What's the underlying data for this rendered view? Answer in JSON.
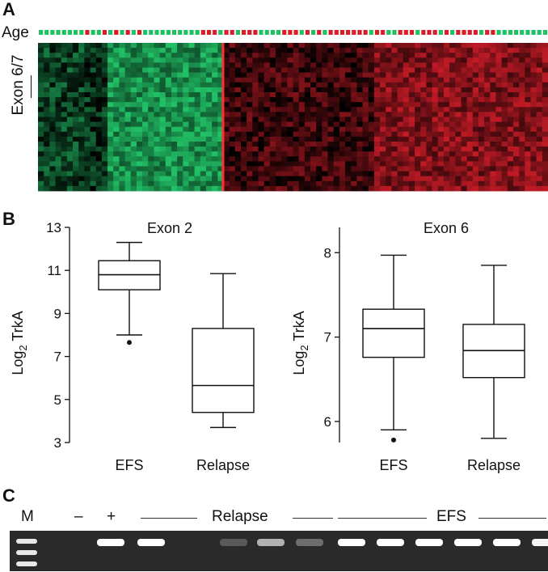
{
  "panels": {
    "a": "A",
    "b": "B",
    "c": "C"
  },
  "heatmap": {
    "age_label": "Age",
    "exon_label": "Exon 6/7",
    "colors": {
      "low": "#22c066",
      "high": "#d81e2a",
      "mid": "#000000",
      "border_line": "#ff3030"
    },
    "age_bar": {
      "n_samples": 88,
      "red_samples": [
        16,
        17,
        23,
        27,
        31,
        35,
        56,
        57,
        58,
        59,
        61,
        64,
        67,
        70,
        72,
        74,
        84,
        86,
        89,
        93,
        96,
        101,
        102,
        103,
        105,
        106,
        109,
        111,
        113,
        116,
        119,
        124,
        127,
        129,
        132,
        135,
        137,
        140,
        144,
        147,
        149,
        151,
        154,
        155,
        156
      ]
    }
  },
  "charts": [
    {
      "id": "exon2",
      "chart_data": {
        "type": "box",
        "title": "Exon 2",
        "xlabel": "",
        "ylabel": "Log2 TrkA",
        "ylabel_main": "Log",
        "ylabel_sub": "2",
        "ylabel_rest": " TrkA",
        "categories": [
          "EFS",
          "Relapse"
        ],
        "ylim": [
          3,
          13
        ],
        "yticks": [
          3,
          5,
          7,
          9,
          11,
          13
        ],
        "boxes": [
          {
            "name": "EFS",
            "whisker_low": 8.0,
            "q1": 10.1,
            "median": 10.8,
            "q3": 11.45,
            "whisker_high": 12.3,
            "outliers": [
              7.65
            ]
          },
          {
            "name": "Relapse",
            "whisker_low": 3.7,
            "q1": 4.4,
            "median": 5.65,
            "q3": 8.3,
            "whisker_high": 10.85,
            "outliers": []
          }
        ]
      }
    },
    {
      "id": "exon6",
      "chart_data": {
        "type": "box",
        "title": "Exon 6",
        "xlabel": "",
        "ylabel": "Log2 TrkA",
        "ylabel_main": "Log",
        "ylabel_sub": "2",
        "ylabel_rest": " TrkA",
        "categories": [
          "EFS",
          "Relapse"
        ],
        "ylim": [
          5.75,
          8.3
        ],
        "yticks": [
          6,
          7,
          8
        ],
        "boxes": [
          {
            "name": "EFS",
            "whisker_low": 5.9,
            "q1": 6.76,
            "median": 7.1,
            "q3": 7.33,
            "whisker_high": 7.97,
            "outliers": [
              5.78
            ]
          },
          {
            "name": "Relapse",
            "whisker_low": 5.8,
            "q1": 6.52,
            "median": 6.84,
            "q3": 7.15,
            "whisker_high": 7.85,
            "outliers": []
          }
        ]
      }
    }
  ],
  "gel": {
    "marker_label": "M",
    "neg_label": "–",
    "pos_label": "+",
    "relapse_label": "Relapse",
    "efs_label": "EFS",
    "lanes": [
      {
        "name": "negative",
        "intensity": 0.0
      },
      {
        "name": "positive",
        "intensity": 1.0
      },
      {
        "name": "relapse-1",
        "intensity": 1.0
      },
      {
        "name": "relapse-2",
        "intensity": 0.15
      },
      {
        "name": "relapse-3",
        "intensity": 0.6
      },
      {
        "name": "relapse-4",
        "intensity": 0.25
      },
      {
        "name": "efs-1",
        "intensity": 1.0
      },
      {
        "name": "efs-2",
        "intensity": 1.0
      },
      {
        "name": "efs-3",
        "intensity": 1.0
      },
      {
        "name": "efs-4",
        "intensity": 1.0
      },
      {
        "name": "efs-5",
        "intensity": 1.0
      },
      {
        "name": "efs-6",
        "intensity": 0.95
      }
    ]
  }
}
